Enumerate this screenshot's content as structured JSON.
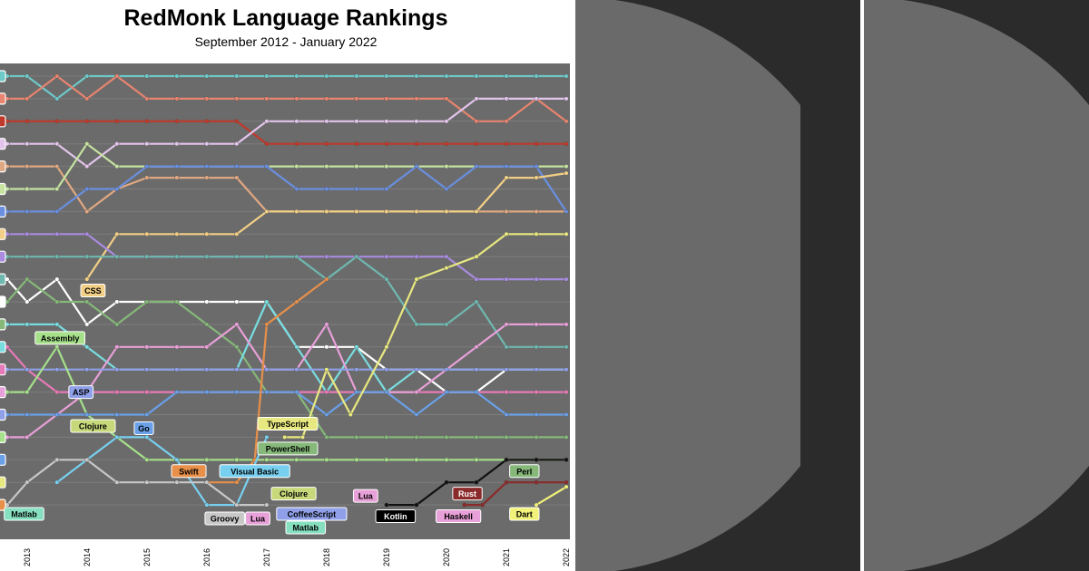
{
  "chart_data": {
    "type": "line",
    "title": "RedMonk Language Rankings",
    "subtitle": "September 2012 - January 2022",
    "x_ticks": [
      "2013",
      "2014",
      "2015",
      "2016",
      "2017",
      "2018",
      "2019",
      "2020",
      "2021",
      "2022"
    ],
    "x_range": [
      2012.67,
      2022.0
    ],
    "y_range": [
      1,
      20
    ],
    "grid": true,
    "background": "#6b6b6b",
    "series": [
      {
        "color": "#6ec9c9",
        "x": [
          2012.67,
          2013,
          2013.5,
          2014,
          2014.5,
          2015,
          2015.5,
          2016,
          2016.5,
          2017,
          2017.5,
          2018,
          2018.5,
          2019,
          2019.5,
          2020,
          2020.5,
          2021,
          2021.5,
          2022
        ],
        "values": [
          1,
          1,
          2,
          1,
          1,
          1,
          1,
          1,
          1,
          1,
          1,
          1,
          1,
          1,
          1,
          1,
          1,
          1,
          1,
          1
        ]
      },
      {
        "color": "#e8846f",
        "x": [
          2012.67,
          2013,
          2013.5,
          2014,
          2014.5,
          2015,
          2015.5,
          2016,
          2016.5,
          2017,
          2017.5,
          2018,
          2018.5,
          2019,
          2019.5,
          2020,
          2020.5,
          2021,
          2021.5,
          2022
        ],
        "values": [
          2,
          2,
          1,
          2,
          1,
          2,
          2,
          2,
          2,
          2,
          2,
          2,
          2,
          2,
          2,
          2,
          3,
          3,
          2,
          3
        ]
      },
      {
        "color": "#c0392b",
        "x": [
          2012.67,
          2013,
          2013.5,
          2014,
          2014.5,
          2015,
          2015.5,
          2016,
          2016.5,
          2017,
          2017.5,
          2018,
          2018.5,
          2019,
          2019.5,
          2020,
          2020.5,
          2021,
          2021.5,
          2022
        ],
        "values": [
          3,
          3,
          3,
          3,
          3,
          3,
          3,
          3,
          3,
          4,
          4,
          4,
          4,
          4,
          4,
          4,
          4,
          4,
          4,
          4
        ]
      },
      {
        "color": "#e3c5ec",
        "x": [
          2012.67,
          2013,
          2013.5,
          2014,
          2014.5,
          2015,
          2015.5,
          2016,
          2016.5,
          2017,
          2017.5,
          2018,
          2018.5,
          2019,
          2019.5,
          2020,
          2020.5,
          2021,
          2021.5,
          2022
        ],
        "values": [
          4,
          4,
          4,
          5,
          4,
          4,
          4,
          4,
          4,
          3,
          3,
          3,
          3,
          3,
          3,
          3,
          2,
          2,
          2,
          2
        ]
      },
      {
        "color": "#e0a882",
        "x": [
          2012.67,
          2013,
          2013.5,
          2014,
          2014.5,
          2015,
          2015.5,
          2016,
          2016.5,
          2017,
          2017.5,
          2018,
          2018.5,
          2019,
          2019.5,
          2020,
          2020.5,
          2021,
          2021.5,
          2022
        ],
        "values": [
          5,
          5,
          5,
          7,
          6,
          5.5,
          5.5,
          5.5,
          5.5,
          7,
          7,
          7,
          7,
          7,
          7,
          7,
          7,
          7,
          7,
          7
        ]
      },
      {
        "color": "#c6e3a0",
        "x": [
          2012.67,
          2013,
          2013.5,
          2014,
          2014.5,
          2015,
          2015.5,
          2016,
          2016.5,
          2017,
          2017.5,
          2018,
          2018.5,
          2019,
          2019.5,
          2020,
          2020.5,
          2021,
          2021.5,
          2022
        ],
        "values": [
          6,
          6,
          6,
          4,
          5,
          5,
          5,
          5,
          5,
          5,
          5,
          5,
          5,
          5,
          5,
          5,
          5,
          5,
          5,
          5
        ]
      },
      {
        "color": "#6a8fe0",
        "x": [
          2012.67,
          2013,
          2013.5,
          2014,
          2014.5,
          2015,
          2015.5,
          2016,
          2016.5,
          2017,
          2017.5,
          2018,
          2018.5,
          2019,
          2019.5,
          2020,
          2020.5,
          2021,
          2021.5,
          2022
        ],
        "values": [
          7,
          7,
          7,
          6,
          6,
          5,
          5,
          5,
          5,
          5,
          6,
          6,
          6,
          6,
          5,
          6,
          5,
          5,
          5,
          7
        ]
      },
      {
        "color": "#f2cf86",
        "x": [
          2014,
          2014.5,
          2015,
          2015.5,
          2016,
          2016.5,
          2017,
          2017.5,
          2018,
          2018.5,
          2019,
          2019.5,
          2020,
          2020.5,
          2021,
          2021.5,
          2022
        ],
        "values": [
          10,
          8,
          8,
          8,
          8,
          8,
          7,
          7,
          7,
          7,
          7,
          7,
          7,
          7,
          5.5,
          5.5,
          5.3
        ]
      },
      {
        "color": "#a98be0",
        "x": [
          2012.67,
          2013,
          2013.5,
          2014,
          2014.5,
          2015,
          2015.5,
          2016,
          2016.5,
          2017,
          2017.5,
          2018,
          2018.5,
          2019,
          2019.5,
          2020,
          2020.5,
          2021,
          2021.5,
          2022
        ],
        "values": [
          8,
          8,
          8,
          8,
          9,
          9,
          9,
          9,
          9,
          9,
          9,
          9,
          9,
          9,
          9,
          9,
          10,
          10,
          10,
          10
        ]
      },
      {
        "color": "#6fb8b0",
        "x": [
          2012.67,
          2013,
          2013.5,
          2014,
          2014.5,
          2015,
          2015.5,
          2016,
          2016.5,
          2017,
          2017.5,
          2018,
          2018.5,
          2019,
          2019.5,
          2020,
          2020.5,
          2021,
          2021.5,
          2022
        ],
        "values": [
          9,
          9,
          9,
          9,
          9,
          9,
          9,
          9,
          9,
          9,
          9,
          10,
          9,
          10,
          12,
          12,
          11,
          13,
          13,
          13
        ]
      },
      {
        "color": "#ffffff",
        "x": [
          2012.67,
          2013,
          2013.5,
          2014,
          2014.5,
          2015,
          2015.5,
          2016,
          2016.5,
          2017,
          2017.5,
          2018,
          2018.5,
          2019,
          2019.5,
          2020,
          2020.5,
          2021,
          2021.5,
          2022
        ],
        "values": [
          10,
          11,
          10,
          12,
          11,
          11,
          11,
          11,
          11,
          11,
          13,
          13,
          13,
          14,
          14,
          15,
          15,
          14,
          14,
          14
        ]
      },
      {
        "color": "#86b87a",
        "x": [
          2012.67,
          2013,
          2013.5,
          2014,
          2014.5,
          2015,
          2015.5,
          2016,
          2016.5,
          2017,
          2017.5,
          2018,
          2018.5,
          2019,
          2019.5,
          2020,
          2020.5,
          2021,
          2021.5,
          2022
        ],
        "values": [
          11,
          10,
          11,
          11,
          12,
          11,
          11,
          12,
          13,
          15,
          15,
          17,
          17,
          17,
          17,
          17,
          17,
          17,
          17,
          17
        ]
      },
      {
        "color": "#79dde0",
        "x": [
          2012.67,
          2013,
          2013.5,
          2014,
          2014.5,
          2015,
          2015.5,
          2016,
          2016.5,
          2017,
          2017.5,
          2018,
          2018.5,
          2019,
          2019.5,
          2020,
          2020.5,
          2021,
          2021.5,
          2022
        ],
        "values": [
          12,
          12,
          12,
          13,
          14,
          14,
          14,
          14,
          14,
          11,
          13,
          15,
          13,
          15,
          14,
          14,
          14,
          14,
          14,
          14
        ]
      },
      {
        "color": "#e77ab8",
        "x": [
          2012.67,
          2013,
          2013.5,
          2014,
          2014.5,
          2015,
          2015.5,
          2016,
          2016.5,
          2017,
          2017.5,
          2018,
          2018.5,
          2019,
          2019.5,
          2020,
          2020.5,
          2021,
          2021.5,
          2022
        ],
        "values": [
          13,
          14,
          15,
          15,
          15,
          15,
          15,
          15,
          15,
          15,
          15,
          15,
          15,
          15,
          15,
          15,
          15,
          15,
          15,
          15
        ]
      },
      {
        "color": "#e8a0d8",
        "x": [
          2012.67,
          2013,
          2013.5,
          2014,
          2014.5,
          2015,
          2015.5,
          2016,
          2016.5,
          2017,
          2017.5,
          2018,
          2018.5,
          2019,
          2019.5,
          2020,
          2020.5,
          2021,
          2021.5,
          2022
        ],
        "values": [
          17,
          17,
          16,
          15,
          13,
          13,
          13,
          13,
          12,
          14,
          14,
          12,
          15,
          15,
          15,
          14,
          13,
          12,
          12,
          12
        ]
      },
      {
        "color": "#8fa0e8",
        "x": [
          2012.67,
          2013,
          2013.5,
          2014,
          2014.5,
          2015,
          2015.5,
          2016,
          2016.5,
          2017,
          2017.5,
          2018,
          2018.5,
          2019,
          2019.5,
          2020,
          2020.5,
          2021,
          2021.5,
          2022
        ],
        "values": [
          14,
          14,
          14,
          14,
          14,
          14,
          14,
          14,
          14,
          14,
          14,
          14,
          14,
          14,
          14,
          14,
          14,
          14,
          14,
          14
        ]
      },
      {
        "color": "#a6e08a",
        "x": [
          2012.67,
          2013,
          2013.5,
          2014,
          2014.5,
          2015,
          2015.5,
          2016,
          2016.5,
          2017,
          2017.5,
          2018,
          2018.5,
          2019,
          2019.5,
          2020,
          2020.5,
          2021,
          2021.5,
          2022
        ],
        "values": [
          15,
          15,
          13,
          16,
          17,
          18,
          18,
          18,
          18,
          18,
          18,
          18,
          18,
          18,
          18,
          18,
          18,
          18,
          18,
          18
        ]
      },
      {
        "color": "#6aa0e8",
        "x": [
          2012.67,
          2013,
          2013.5,
          2014,
          2014.5,
          2015,
          2015.5,
          2016,
          2016.5,
          2017,
          2017.5,
          2018,
          2018.5,
          2019,
          2019.5,
          2020,
          2020.5,
          2021,
          2021.5,
          2022
        ],
        "values": [
          16,
          16,
          16,
          16,
          16,
          16,
          15,
          15,
          15,
          15,
          15,
          16,
          15,
          15,
          16,
          15,
          15,
          16,
          16,
          16
        ]
      },
      {
        "color": "#e8e880",
        "x": [
          2017.3,
          2017.6,
          2018,
          2018.4,
          2019,
          2019.5,
          2020,
          2020.5,
          2021,
          2021.5,
          2022
        ],
        "values": [
          17,
          17,
          14,
          16,
          13,
          10,
          9.5,
          9,
          8,
          8,
          8
        ]
      },
      {
        "color": "#e8904a",
        "x": [
          2016,
          2016.5,
          2016.8,
          2017,
          2017.5,
          2018
        ],
        "values": [
          19,
          19,
          18,
          12,
          11,
          10
        ]
      },
      {
        "color": "#78d0f0",
        "x": [
          2013.5,
          2014,
          2014.5,
          2015,
          2015.5,
          2016,
          2016.5,
          2017
        ],
        "values": [
          19,
          18,
          17,
          17,
          18,
          20,
          20,
          17
        ]
      },
      {
        "color": "#c8c8c8",
        "x": [
          2012.67,
          2013,
          2013.5,
          2014,
          2014.5,
          2015,
          2015.5,
          2016,
          2016.5,
          2017
        ],
        "values": [
          20,
          19,
          18,
          18,
          19,
          19,
          19,
          19,
          20,
          20
        ]
      },
      {
        "color": "#111111",
        "x": [
          2019,
          2019.5,
          2020,
          2020.5,
          2021,
          2021.5,
          2022
        ],
        "values": [
          20,
          20,
          19,
          19,
          18,
          18,
          18
        ]
      },
      {
        "color": "#8b2a2a",
        "x": [
          2020.3,
          2020.6,
          2021,
          2021.5,
          2022
        ],
        "values": [
          20,
          20,
          19,
          19,
          19
        ]
      },
      {
        "color": "#f2f27a",
        "x": [
          2021.5,
          2022
        ],
        "values": [
          20,
          19.2
        ]
      }
    ],
    "annotations": [
      {
        "text": "CSS",
        "fill": "#f2cf86",
        "text_color": "#000",
        "x": 2014.1,
        "y": 10.5
      },
      {
        "text": "Assembly",
        "fill": "#a6e08a",
        "text_color": "#000",
        "x": 2013.55,
        "y": 12.6
      },
      {
        "text": "ASP",
        "fill": "#8fa0e8",
        "text_color": "#000",
        "x": 2013.9,
        "y": 15
      },
      {
        "text": "Clojure",
        "fill": "#c6d87a",
        "text_color": "#000",
        "x": 2014.1,
        "y": 16.5
      },
      {
        "text": "Go",
        "fill": "#6aa0e8",
        "text_color": "#000",
        "x": 2014.95,
        "y": 16.6
      },
      {
        "text": "Swift",
        "fill": "#e8904a",
        "text_color": "#000",
        "x": 2015.7,
        "y": 18.5
      },
      {
        "text": "Visual Basic",
        "fill": "#78d0f0",
        "text_color": "#000",
        "x": 2016.8,
        "y": 18.5
      },
      {
        "text": "TypeScript",
        "fill": "#e8e880",
        "text_color": "#000",
        "x": 2017.35,
        "y": 16.4
      },
      {
        "text": "PowerShell",
        "fill": "#86b87a",
        "text_color": "#000",
        "x": 2017.35,
        "y": 17.5
      },
      {
        "text": "Clojure",
        "fill": "#c6d87a",
        "text_color": "#000",
        "x": 2017.45,
        "y": 19.5
      },
      {
        "text": "Lua",
        "fill": "#e8a0d8",
        "text_color": "#000",
        "x": 2018.65,
        "y": 19.6
      },
      {
        "text": "Matlab",
        "fill": "#86e0c0",
        "text_color": "#000",
        "x": 2012.95,
        "y": 20.4
      },
      {
        "text": "Groovy",
        "fill": "#c8c8c8",
        "text_color": "#000",
        "x": 2016.3,
        "y": 20.6
      },
      {
        "text": "Lua",
        "fill": "#e8a0d8",
        "text_color": "#000",
        "x": 2016.85,
        "y": 20.6
      },
      {
        "text": "CoffeeScript",
        "fill": "#8fa0e8",
        "text_color": "#000",
        "x": 2017.75,
        "y": 20.4
      },
      {
        "text": "Matlab",
        "fill": "#86e0c0",
        "text_color": "#000",
        "x": 2017.65,
        "y": 21.0
      },
      {
        "text": "Kotlin",
        "fill": "#000000",
        "text_color": "#fff",
        "x": 2019.15,
        "y": 20.5
      },
      {
        "text": "Rust",
        "fill": "#8b2a2a",
        "text_color": "#fff",
        "x": 2020.35,
        "y": 19.5
      },
      {
        "text": "Haskell",
        "fill": "#e8a0d8",
        "text_color": "#000",
        "x": 2020.2,
        "y": 20.5
      },
      {
        "text": "Perl",
        "fill": "#86b87a",
        "text_color": "#000",
        "x": 2021.3,
        "y": 18.5
      },
      {
        "text": "Dart",
        "fill": "#f2f27a",
        "text_color": "#000",
        "x": 2021.3,
        "y": 20.4
      }
    ]
  }
}
